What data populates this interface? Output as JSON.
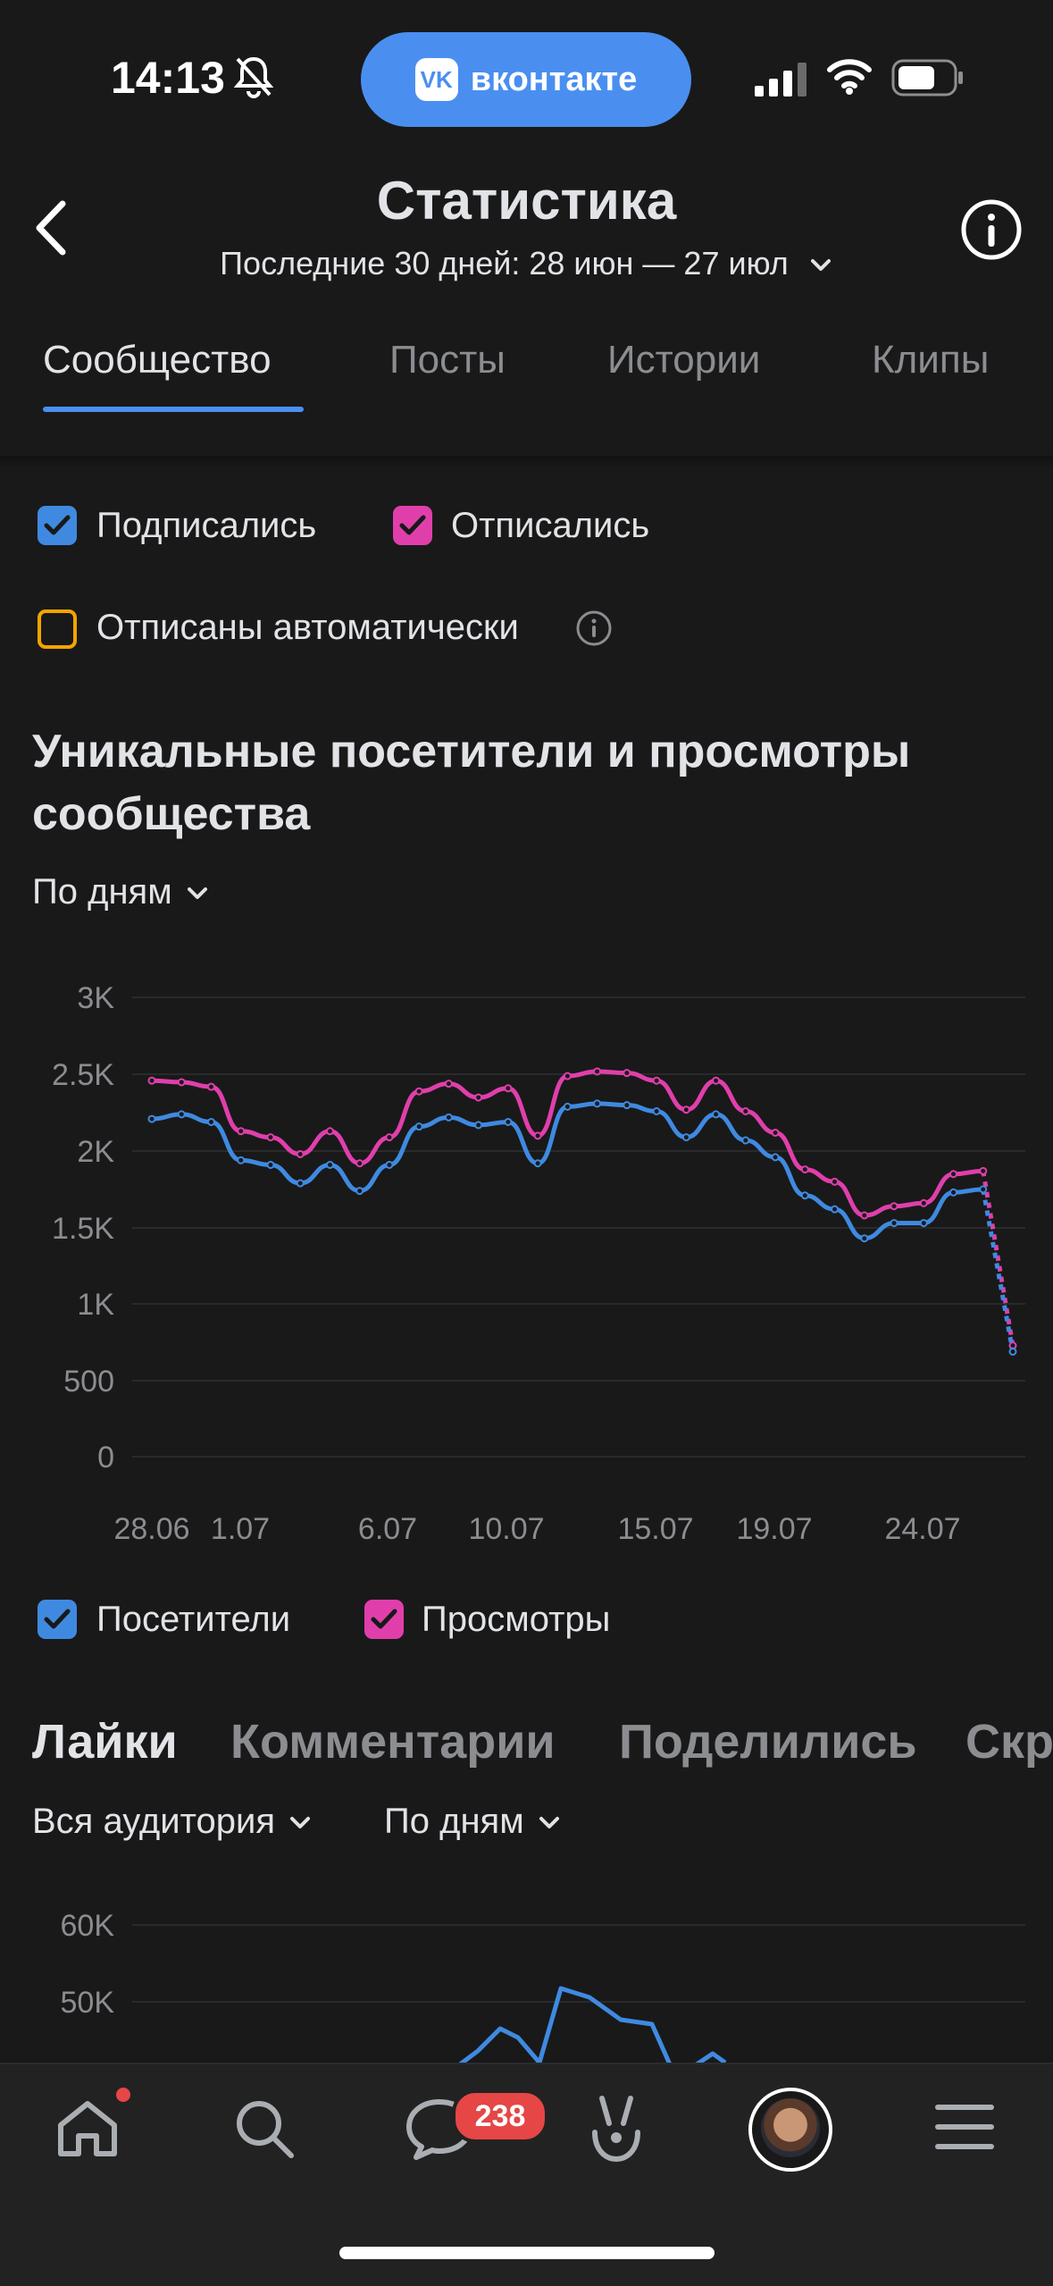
{
  "status_bar": {
    "time": "14:13",
    "pill_label": "вконтакте",
    "pill_logo": "VK"
  },
  "header": {
    "title": "Статистика",
    "period": "Последние 30 дней: 28 июн — 27 июл"
  },
  "tabs": [
    {
      "label": "Сообщество",
      "active": true
    },
    {
      "label": "Посты",
      "active": false
    },
    {
      "label": "Истории",
      "active": false
    },
    {
      "label": "Клипы",
      "active": false
    }
  ],
  "filters": {
    "subscribed": {
      "label": "Подписались",
      "checked": true,
      "color": "#3f8ae0"
    },
    "unsubscribed": {
      "label": "Отписались",
      "checked": true,
      "color": "#e03fab"
    },
    "auto_unsubscribed": {
      "label": "Отписаны автоматически",
      "checked": false,
      "color": "#f4a400"
    }
  },
  "visitors_section": {
    "title": "Уникальные посетители и просмотры сообщества",
    "granularity": "По дням"
  },
  "chart_data": {
    "type": "line",
    "x": [
      "28.06",
      "29.06",
      "30.06",
      "1.07",
      "2.07",
      "3.07",
      "4.07",
      "5.07",
      "6.07",
      "7.07",
      "8.07",
      "9.07",
      "10.07",
      "11.07",
      "12.07",
      "13.07",
      "14.07",
      "15.07",
      "16.07",
      "17.07",
      "18.07",
      "19.07",
      "20.07",
      "21.07",
      "22.07",
      "23.07",
      "24.07",
      "25.07",
      "26.07",
      "27.07"
    ],
    "x_tick_labels": [
      "28.06",
      "1.07",
      "6.07",
      "10.07",
      "15.07",
      "19.07",
      "24.07"
    ],
    "y_tick_labels": [
      "3K",
      "2.5K",
      "2K",
      "1.5K",
      "1K",
      "500",
      "0"
    ],
    "ylim": [
      0,
      3000
    ],
    "series": [
      {
        "name": "Посетители",
        "color": "#3f8ae0",
        "values": [
          2200,
          2230,
          2180,
          1930,
          1900,
          1780,
          1900,
          1730,
          1900,
          2150,
          2210,
          2160,
          2180,
          1910,
          2280,
          2300,
          2290,
          2250,
          2080,
          2230,
          2060,
          1950,
          1700,
          1610,
          1420,
          1520,
          1520,
          1720,
          1740,
          680
        ]
      },
      {
        "name": "Просмотры",
        "color": "#e03fab",
        "values": [
          2450,
          2440,
          2410,
          2120,
          2080,
          1970,
          2120,
          1910,
          2080,
          2380,
          2430,
          2340,
          2400,
          2090,
          2480,
          2510,
          2500,
          2450,
          2260,
          2450,
          2250,
          2110,
          1870,
          1790,
          1570,
          1630,
          1650,
          1840,
          1860,
          720
        ]
      }
    ]
  },
  "legend": {
    "visitors": {
      "label": "Посетители",
      "color": "#3f8ae0"
    },
    "views": {
      "label": "Просмотры",
      "color": "#e03fab"
    }
  },
  "metrics": {
    "tabs": [
      {
        "label": "Лайки",
        "active": true
      },
      {
        "label": "Комментарии",
        "active": false
      },
      {
        "label": "Поделились",
        "active": false
      },
      {
        "label": "Скр",
        "active": false
      }
    ],
    "audience": "Вся аудитория",
    "granularity": "По дням",
    "y_tick_labels": [
      "60K",
      "50K"
    ]
  },
  "bottom_nav": {
    "items": [
      "home-icon",
      "search-icon",
      "messages-icon",
      "clips-icon",
      "profile-avatar",
      "menu-icon"
    ],
    "messages_badge": "238"
  }
}
